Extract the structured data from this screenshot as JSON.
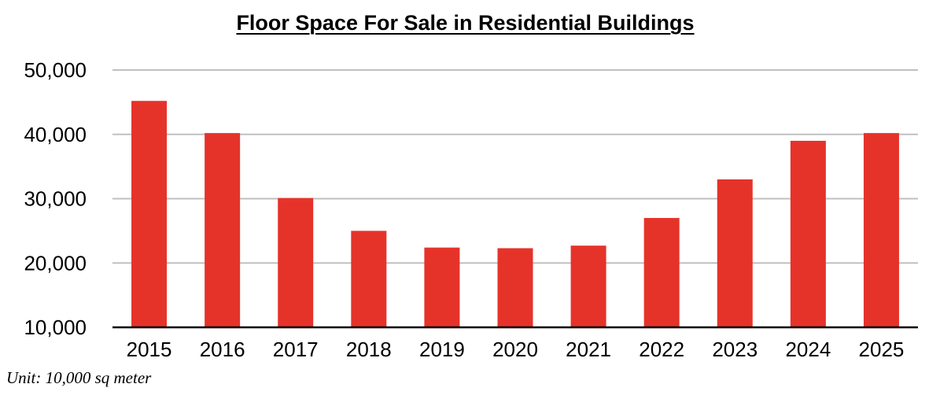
{
  "chart_data": {
    "type": "bar",
    "title": "Floor Space For Sale in Residential Buildings",
    "categories": [
      "2015",
      "2016",
      "2017",
      "2018",
      "2019",
      "2020",
      "2021",
      "2022",
      "2023",
      "2024",
      "2025"
    ],
    "values": [
      45200,
      40200,
      30100,
      25000,
      22400,
      22300,
      22700,
      27000,
      33000,
      39000,
      40200
    ],
    "ylim": [
      10000,
      50000
    ],
    "yticks": [
      10000,
      20000,
      30000,
      40000,
      50000
    ],
    "ytick_labels": [
      "10,000",
      "20,000",
      "30,000",
      "40,000",
      "50,000"
    ],
    "bar_color": "#e5332a",
    "grid": true,
    "note": "Unit: 10,000 sq meter"
  }
}
